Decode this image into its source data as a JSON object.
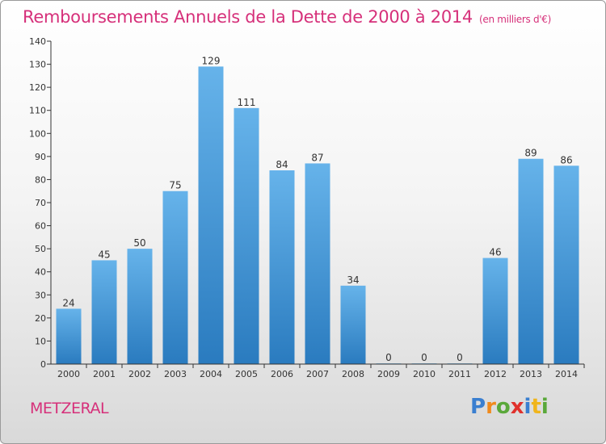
{
  "title": "Remboursements Annuels de la Dette de 2000 à 2014",
  "subtitle": "(en milliers d'€)",
  "place": "METZERAL",
  "logo": {
    "letters": [
      "P",
      "r",
      "o",
      "x",
      "i",
      "t",
      "i"
    ],
    "colors": [
      "#3a7fd0",
      "#f08a1c",
      "#5aa83a",
      "#e0312c",
      "#3a7fd0",
      "#f0b51c",
      "#5aa83a"
    ]
  },
  "colors": {
    "bar_top": "#66b3ea",
    "bar_bottom": "#2a7bbf",
    "title": "#d6307a"
  },
  "chart_data": {
    "type": "bar",
    "categories": [
      "2000",
      "2001",
      "2002",
      "2003",
      "2004",
      "2005",
      "2006",
      "2007",
      "2008",
      "2009",
      "2010",
      "2011",
      "2012",
      "2013",
      "2014"
    ],
    "values": [
      24,
      45,
      50,
      75,
      129,
      111,
      84,
      87,
      34,
      0,
      0,
      0,
      46,
      89,
      86
    ],
    "data_labels": [
      "24",
      "45",
      "50",
      "75",
      "129",
      "111",
      "84",
      "87",
      "34",
      "0",
      "0",
      "0",
      "46",
      "89",
      "86"
    ],
    "ylim": [
      0,
      140
    ],
    "yticks": [
      0,
      10,
      20,
      30,
      40,
      50,
      60,
      70,
      80,
      90,
      100,
      110,
      120,
      130,
      140
    ],
    "grid": false
  }
}
